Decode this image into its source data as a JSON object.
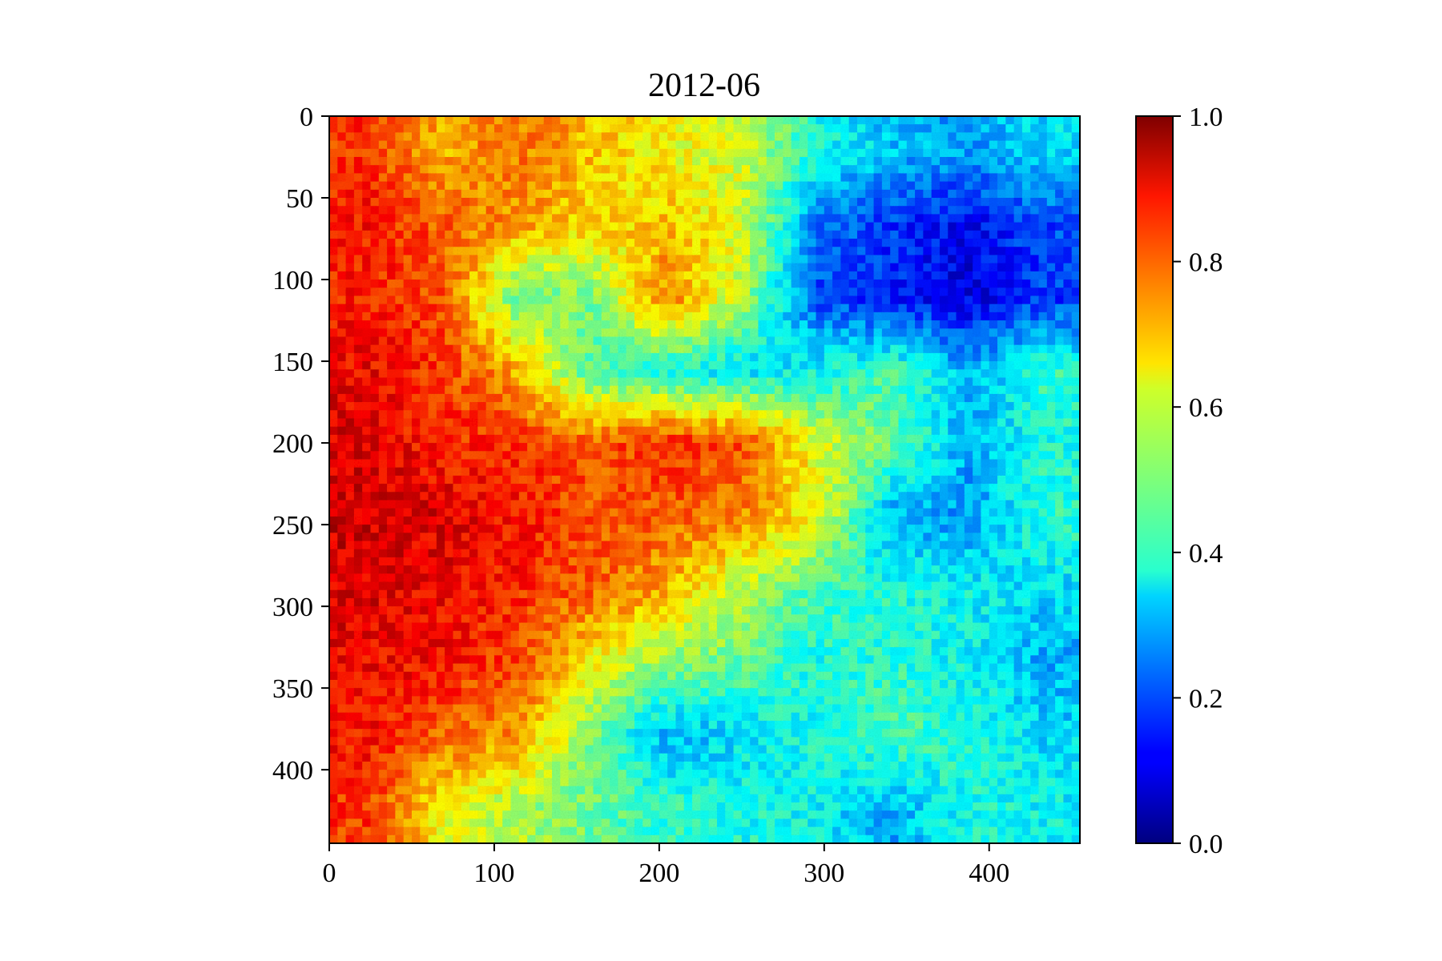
{
  "chart_data": {
    "type": "heatmap",
    "title": "2012-06",
    "xlabel": "",
    "ylabel": "",
    "xlim": [
      0,
      455
    ],
    "ylim": [
      445,
      0
    ],
    "x_ticks": [
      0,
      100,
      200,
      300,
      400
    ],
    "x_tick_labels": [
      "0",
      "100",
      "200",
      "300",
      "400"
    ],
    "y_ticks": [
      0,
      50,
      100,
      150,
      200,
      250,
      300,
      350,
      400
    ],
    "y_tick_labels": [
      "0",
      "50",
      "100",
      "150",
      "200",
      "250",
      "300",
      "350",
      "400"
    ],
    "colormap": "jet",
    "vmin": 0.0,
    "vmax": 1.0,
    "colorbar_ticks": [
      0.0,
      0.2,
      0.4,
      0.6,
      0.8,
      1.0
    ],
    "colorbar_tick_labels": [
      "0.0",
      "0.2",
      "0.4",
      "0.6",
      "0.8",
      "1.0"
    ],
    "grid": false,
    "x_centers": [
      22.75,
      68.25,
      113.75,
      159.25,
      204.75,
      250.25,
      295.75,
      341.25,
      386.75,
      432.25
    ],
    "y_centers": [
      22.25,
      66.75,
      111.25,
      155.75,
      200.25,
      244.75,
      289.25,
      333.75,
      378.25,
      422.75
    ],
    "z": [
      [
        0.82,
        0.7,
        0.76,
        0.68,
        0.62,
        0.58,
        0.4,
        0.32,
        0.28,
        0.35
      ],
      [
        0.86,
        0.78,
        0.72,
        0.65,
        0.68,
        0.6,
        0.25,
        0.18,
        0.12,
        0.2
      ],
      [
        0.84,
        0.8,
        0.48,
        0.5,
        0.75,
        0.55,
        0.2,
        0.15,
        0.1,
        0.18
      ],
      [
        0.88,
        0.82,
        0.7,
        0.45,
        0.4,
        0.35,
        0.38,
        0.45,
        0.3,
        0.42
      ],
      [
        0.9,
        0.84,
        0.82,
        0.78,
        0.84,
        0.8,
        0.6,
        0.48,
        0.3,
        0.4
      ],
      [
        0.92,
        0.9,
        0.86,
        0.8,
        0.78,
        0.74,
        0.62,
        0.3,
        0.28,
        0.42
      ],
      [
        0.9,
        0.88,
        0.84,
        0.78,
        0.7,
        0.55,
        0.45,
        0.4,
        0.38,
        0.35
      ],
      [
        0.88,
        0.86,
        0.8,
        0.62,
        0.52,
        0.48,
        0.4,
        0.42,
        0.38,
        0.3
      ],
      [
        0.86,
        0.78,
        0.72,
        0.5,
        0.3,
        0.35,
        0.4,
        0.45,
        0.42,
        0.35
      ],
      [
        0.82,
        0.62,
        0.55,
        0.48,
        0.42,
        0.4,
        0.38,
        0.3,
        0.4,
        0.38
      ]
    ]
  }
}
